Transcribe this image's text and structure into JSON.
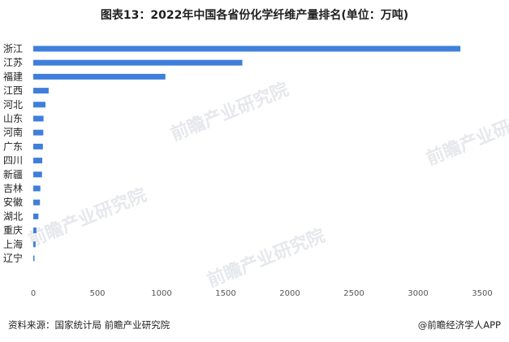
{
  "chart_data": {
    "type": "bar",
    "orientation": "horizontal",
    "title": "图表13：2022年中国各省份化学纤维产量排名(单位：万吨)",
    "categories": [
      "浙江",
      "江苏",
      "福建",
      "江西",
      "河北",
      "山东",
      "河南",
      "广东",
      "四川",
      "新疆",
      "吉林",
      "安徽",
      "湖北",
      "重庆",
      "上海",
      "辽宁"
    ],
    "values": [
      3330,
      1630,
      1030,
      120,
      95,
      80,
      78,
      75,
      70,
      68,
      55,
      52,
      40,
      25,
      18,
      8
    ],
    "xlim": [
      0,
      3500
    ],
    "xticks": [
      0,
      500,
      1000,
      1500,
      2000,
      2500,
      3000,
      3500
    ],
    "bar_color": "#3f7fdb",
    "grid": false,
    "legend": "none"
  },
  "footer": {
    "source": "资料来源：国家统计局 前瞻产业研究院",
    "brand": "@前瞻经济学人APP"
  },
  "watermark": {
    "text": "前瞻产业研究院"
  }
}
